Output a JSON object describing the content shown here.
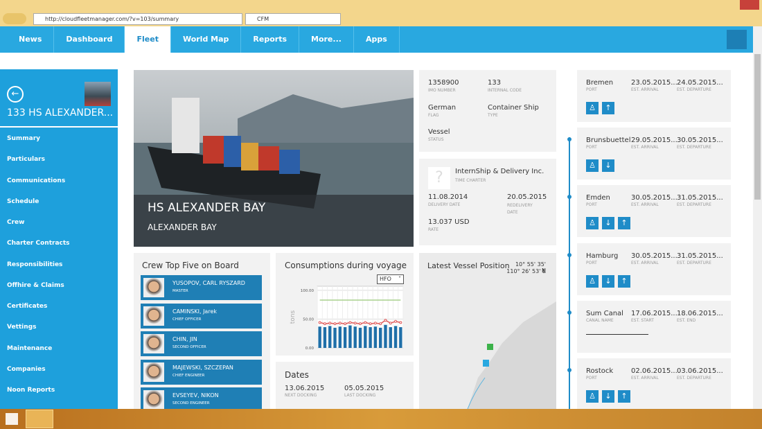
{
  "browser": {
    "url": "http://cloudfleetmanager.com/?v=103/summary",
    "tab_title": "CFM"
  },
  "nav": {
    "items": [
      "News",
      "Dashboard",
      "Fleet",
      "World Map",
      "Reports",
      "More...",
      "Apps"
    ]
  },
  "sidebar": {
    "vessel_title": "133 HS ALEXANDER...",
    "menu": [
      "Summary",
      "Particulars",
      "Communications",
      "Schedule",
      "Crew",
      "Charter Contracts",
      "Responsibilities",
      "Offhire & Claims",
      "Certificates",
      "Vettings",
      "Maintenance",
      "Companies",
      "Noon Reports"
    ]
  },
  "hero": {
    "title": "HS ALEXANDER BAY",
    "subtitle": "ALEXANDER BAY"
  },
  "particulars": [
    {
      "value": "1358900",
      "label": "IMO NUMBER"
    },
    {
      "value": "133",
      "label": "INTERNAL CODE"
    },
    {
      "value": "German",
      "label": "FLAG"
    },
    {
      "value": "Container Ship",
      "label": "TYPE"
    },
    {
      "value": "Vessel",
      "label": "STATUS"
    }
  ],
  "charter": {
    "company": "InternShip & Delivery Inc.",
    "company_label": "TIME CHARTER",
    "delivery": {
      "value": "11.08.2014",
      "label": "DELIVERY DATE"
    },
    "redelivery": {
      "value": "20.05.2015",
      "label": "REDELIVERY DATE"
    },
    "rate": {
      "value": "13.037 USD",
      "label": "RATE"
    }
  },
  "crew": {
    "title": "Crew Top Five on Board",
    "members": [
      {
        "name": "YUSOPOV, CARL RYSZARD",
        "rank": "MASTER"
      },
      {
        "name": "CAMINSKI, Jarek",
        "rank": "CHIEF OFFICER"
      },
      {
        "name": "CHIN, JIN",
        "rank": "SECOND OFFICER"
      },
      {
        "name": "MAJEWSKI, SZCZEPAN",
        "rank": "CHIEF ENGINEER"
      },
      {
        "name": "EVSEYEV, NIKON",
        "rank": "SECOND ENGINEER"
      }
    ]
  },
  "consumptions": {
    "title": "Consumptions during voyage",
    "fuel": "HFO",
    "chart": {
      "type": "bar",
      "y_label": "tons",
      "ylim": [
        0,
        107
      ],
      "yticks": [
        {
          "value": 0,
          "label": "0.00"
        },
        {
          "value": 50,
          "label": "50.00"
        },
        {
          "value": 100,
          "label": "100.00"
        }
      ],
      "grid": true,
      "series": [
        {
          "type": "bar",
          "color": "#1f6fa8",
          "values": [
            37,
            36,
            38,
            35,
            37,
            36,
            39,
            37,
            35,
            38,
            36,
            37,
            35,
            40,
            36,
            38,
            36
          ]
        },
        {
          "type": "line",
          "color": "#e05a5a",
          "values": [
            44,
            42,
            43,
            42,
            43,
            42,
            44,
            43,
            42,
            44,
            42,
            43,
            42,
            48,
            43,
            46,
            44
          ]
        },
        {
          "type": "line",
          "color": "#a9d18e",
          "values": [
            83,
            83,
            83,
            83,
            83,
            83,
            83,
            83,
            83,
            83,
            83,
            83,
            83,
            83,
            83,
            83,
            83
          ]
        }
      ]
    }
  },
  "dates": {
    "title": "Dates",
    "items": [
      {
        "value": "13.06.2015",
        "label": "NEXT DOCKING"
      },
      {
        "value": "05.05.2015",
        "label": "LAST DOCKING"
      }
    ]
  },
  "position": {
    "title": "Latest Vessel Position",
    "lat": "10° 55' 35' N",
    "lon": "110° 26' 53' E"
  },
  "schedule": [
    {
      "name": "Bremen",
      "name_label": "PORT",
      "start": "23.05.2015...",
      "start_label": "EST. ARRIVAL",
      "end": "24.05.2015...",
      "end_label": "EST. DEPARTURE"
    },
    {
      "name": "Brunsbuettel",
      "name_label": "PORT",
      "start": "29.05.2015...",
      "start_label": "EST. ARRIVAL",
      "end": "30.05.2015...",
      "end_label": "EST. DEPARTURE"
    },
    {
      "name": "Emden",
      "name_label": "PORT",
      "start": "30.05.2015...",
      "start_label": "EST. ARRIVAL",
      "end": "31.05.2015...",
      "end_label": "EST. DEPARTURE"
    },
    {
      "name": "Hamburg",
      "name_label": "PORT",
      "start": "30.05.2015...",
      "start_label": "EST. ARRIVAL",
      "end": "31.05.2015...",
      "end_label": "EST. DEPARTURE"
    },
    {
      "name": "Sum Canal",
      "name_label": "CANAL NAME",
      "start": "17.06.2015...",
      "start_label": "EST. START",
      "end": "18.06.2015...",
      "end_label": "EST. END"
    },
    {
      "name": "Rostock",
      "name_label": "PORT",
      "start": "02.06.2015...",
      "start_label": "EST. ARRIVAL",
      "end": "03.06.2015...",
      "end_label": "EST. DEPARTURE"
    }
  ]
}
